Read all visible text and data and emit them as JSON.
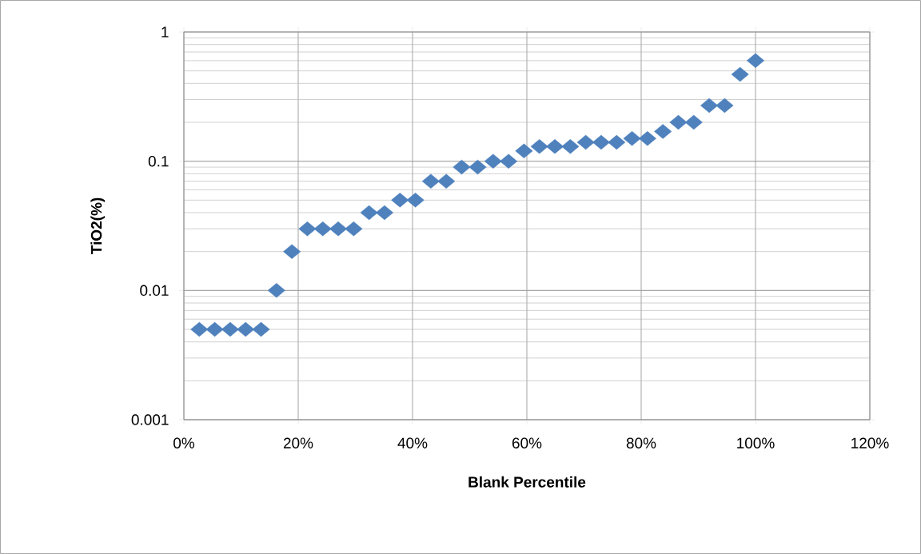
{
  "chart_data": {
    "type": "scatter",
    "ylabel": "TiO2(%)",
    "xlabel": "Blank Percentile",
    "x": [
      0.027,
      0.054,
      0.081,
      0.108,
      0.135,
      0.162,
      0.189,
      0.216,
      0.243,
      0.27,
      0.297,
      0.324,
      0.351,
      0.378,
      0.405,
      0.432,
      0.459,
      0.486,
      0.514,
      0.541,
      0.568,
      0.595,
      0.622,
      0.649,
      0.676,
      0.703,
      0.73,
      0.757,
      0.784,
      0.811,
      0.838,
      0.865,
      0.892,
      0.919,
      0.946,
      0.973,
      1.0
    ],
    "values": [
      0.005,
      0.005,
      0.005,
      0.005,
      0.005,
      0.01,
      0.02,
      0.03,
      0.03,
      0.03,
      0.03,
      0.04,
      0.04,
      0.05,
      0.05,
      0.07,
      0.07,
      0.09,
      0.09,
      0.1,
      0.1,
      0.12,
      0.13,
      0.13,
      0.13,
      0.14,
      0.14,
      0.14,
      0.15,
      0.15,
      0.17,
      0.2,
      0.2,
      0.27,
      0.27,
      0.47,
      0.6
    ],
    "color": "#4f81bd",
    "marker": "diamond",
    "log": "y",
    "grid": true,
    "xlim": [
      0,
      1.2
    ],
    "ylim": [
      0.001,
      1
    ],
    "xticks": [
      {
        "value": 0,
        "label": "0%"
      },
      {
        "value": 0.2,
        "label": "20%"
      },
      {
        "value": 0.4,
        "label": "40%"
      },
      {
        "value": 0.6,
        "label": "60%"
      },
      {
        "value": 0.8,
        "label": "80%"
      },
      {
        "value": 1.0,
        "label": "100%"
      },
      {
        "value": 1.2,
        "label": "120%"
      }
    ],
    "yticks": [
      0.001,
      0.01,
      0.1,
      1
    ]
  }
}
